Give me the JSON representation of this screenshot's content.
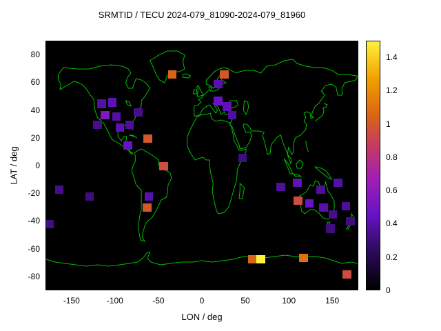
{
  "title": "SRMTID / TECU 2024-079_81090-2024-079_81960",
  "axes": {
    "x_label": "LON / deg",
    "y_label": "LAT / deg"
  },
  "colors": {
    "background": "#ffffff",
    "plot_background": "#000000",
    "coastline": "#00c000",
    "text": "#000000"
  },
  "chart_data": {
    "type": "heatmap",
    "title": "SRMTID / TECU 2024-079_81090-2024-079_81960",
    "xlabel": "LON / deg",
    "ylabel": "LAT / deg",
    "xlim": [
      -180,
      180
    ],
    "ylim": [
      -90,
      90
    ],
    "clim": [
      0,
      1.5
    ],
    "grid": false,
    "legend_position": "colorbar-right",
    "x_ticks": [
      {
        "v": -150,
        "label": "-150"
      },
      {
        "v": -100,
        "label": "-100"
      },
      {
        "v": -50,
        "label": "-50"
      },
      {
        "v": 0,
        "label": "0"
      },
      {
        "v": 50,
        "label": "50"
      },
      {
        "v": 100,
        "label": "100"
      },
      {
        "v": 150,
        "label": "150"
      }
    ],
    "y_ticks": [
      {
        "v": 80,
        "label": "80"
      },
      {
        "v": 60,
        "label": "60"
      },
      {
        "v": 40,
        "label": "40"
      },
      {
        "v": 20,
        "label": "20"
      },
      {
        "v": 0,
        "label": "0"
      },
      {
        "v": -20,
        "label": "-20"
      },
      {
        "v": -40,
        "label": "-40"
      },
      {
        "v": -60,
        "label": "-60"
      },
      {
        "v": -80,
        "label": "-80"
      }
    ],
    "colorbar_ticks": [
      {
        "v": 0,
        "label": "0"
      },
      {
        "v": 0.2,
        "label": "0.2"
      },
      {
        "v": 0.4,
        "label": "0.4"
      },
      {
        "v": 0.6,
        "label": "0.6"
      },
      {
        "v": 0.8,
        "label": "0.8"
      },
      {
        "v": 1,
        "label": "1"
      },
      {
        "v": 1.2,
        "label": "1.2"
      },
      {
        "v": 1.4,
        "label": "1.4"
      }
    ],
    "cell_size_deg": {
      "lon": 10,
      "lat": 6
    },
    "palette": [
      {
        "t": 0.0,
        "c": "#000000"
      },
      {
        "t": 0.15,
        "c": "#2b0a57"
      },
      {
        "t": 0.3,
        "c": "#6612c6"
      },
      {
        "t": 0.45,
        "c": "#a21fb4"
      },
      {
        "t": 0.58,
        "c": "#c53a62"
      },
      {
        "t": 0.7,
        "c": "#d96416"
      },
      {
        "t": 0.85,
        "c": "#f2a000"
      },
      {
        "t": 1.0,
        "c": "#fdf23c"
      }
    ],
    "cells": [
      {
        "lon": -35,
        "lat": 66,
        "v": 1.05
      },
      {
        "lon": 25,
        "lat": 66,
        "v": 1.0
      },
      {
        "lon": 18,
        "lat": 59,
        "v": 0.4
      },
      {
        "lon": -116,
        "lat": 45,
        "v": 0.38
      },
      {
        "lon": -104,
        "lat": 46,
        "v": 0.42
      },
      {
        "lon": -112,
        "lat": 37,
        "v": 0.55
      },
      {
        "lon": -99,
        "lat": 36,
        "v": 0.38
      },
      {
        "lon": -121,
        "lat": 30,
        "v": 0.33
      },
      {
        "lon": -95,
        "lat": 28,
        "v": 0.42
      },
      {
        "lon": -84,
        "lat": 30,
        "v": 0.36
      },
      {
        "lon": -74,
        "lat": 39,
        "v": 0.33
      },
      {
        "lon": -86,
        "lat": 15,
        "v": 0.45
      },
      {
        "lon": -63,
        "lat": 20,
        "v": 1.0
      },
      {
        "lon": -45,
        "lat": 0,
        "v": 0.95
      },
      {
        "lon": -165,
        "lat": -17,
        "v": 0.33
      },
      {
        "lon": -130,
        "lat": -22,
        "v": 0.3
      },
      {
        "lon": -62,
        "lat": -22,
        "v": 0.4
      },
      {
        "lon": -64,
        "lat": -30,
        "v": 1.0
      },
      {
        "lon": -176,
        "lat": -42,
        "v": 0.32
      },
      {
        "lon": 18,
        "lat": 47,
        "v": 0.45
      },
      {
        "lon": 28,
        "lat": 43,
        "v": 0.42
      },
      {
        "lon": 34,
        "lat": 37,
        "v": 0.36
      },
      {
        "lon": 46,
        "lat": 6,
        "v": 0.3
      },
      {
        "lon": 90,
        "lat": -15,
        "v": 0.36
      },
      {
        "lon": 109,
        "lat": -12,
        "v": 0.42
      },
      {
        "lon": 136,
        "lat": -17,
        "v": 0.36
      },
      {
        "lon": 156,
        "lat": -12,
        "v": 0.38
      },
      {
        "lon": 110,
        "lat": -25,
        "v": 0.95
      },
      {
        "lon": 123,
        "lat": -27,
        "v": 0.45
      },
      {
        "lon": 139,
        "lat": -30,
        "v": 0.4
      },
      {
        "lon": 150,
        "lat": -35,
        "v": 0.33
      },
      {
        "lon": 165,
        "lat": -29,
        "v": 0.36
      },
      {
        "lon": 170,
        "lat": -40,
        "v": 0.3
      },
      {
        "lon": 147,
        "lat": -45,
        "v": 0.3
      },
      {
        "lon": 57,
        "lat": -67,
        "v": 1.05
      },
      {
        "lon": 67,
        "lat": -67,
        "v": 1.5
      },
      {
        "lon": 116,
        "lat": -66,
        "v": 1.1
      },
      {
        "lon": 166,
        "lat": -78,
        "v": 0.95
      }
    ]
  }
}
